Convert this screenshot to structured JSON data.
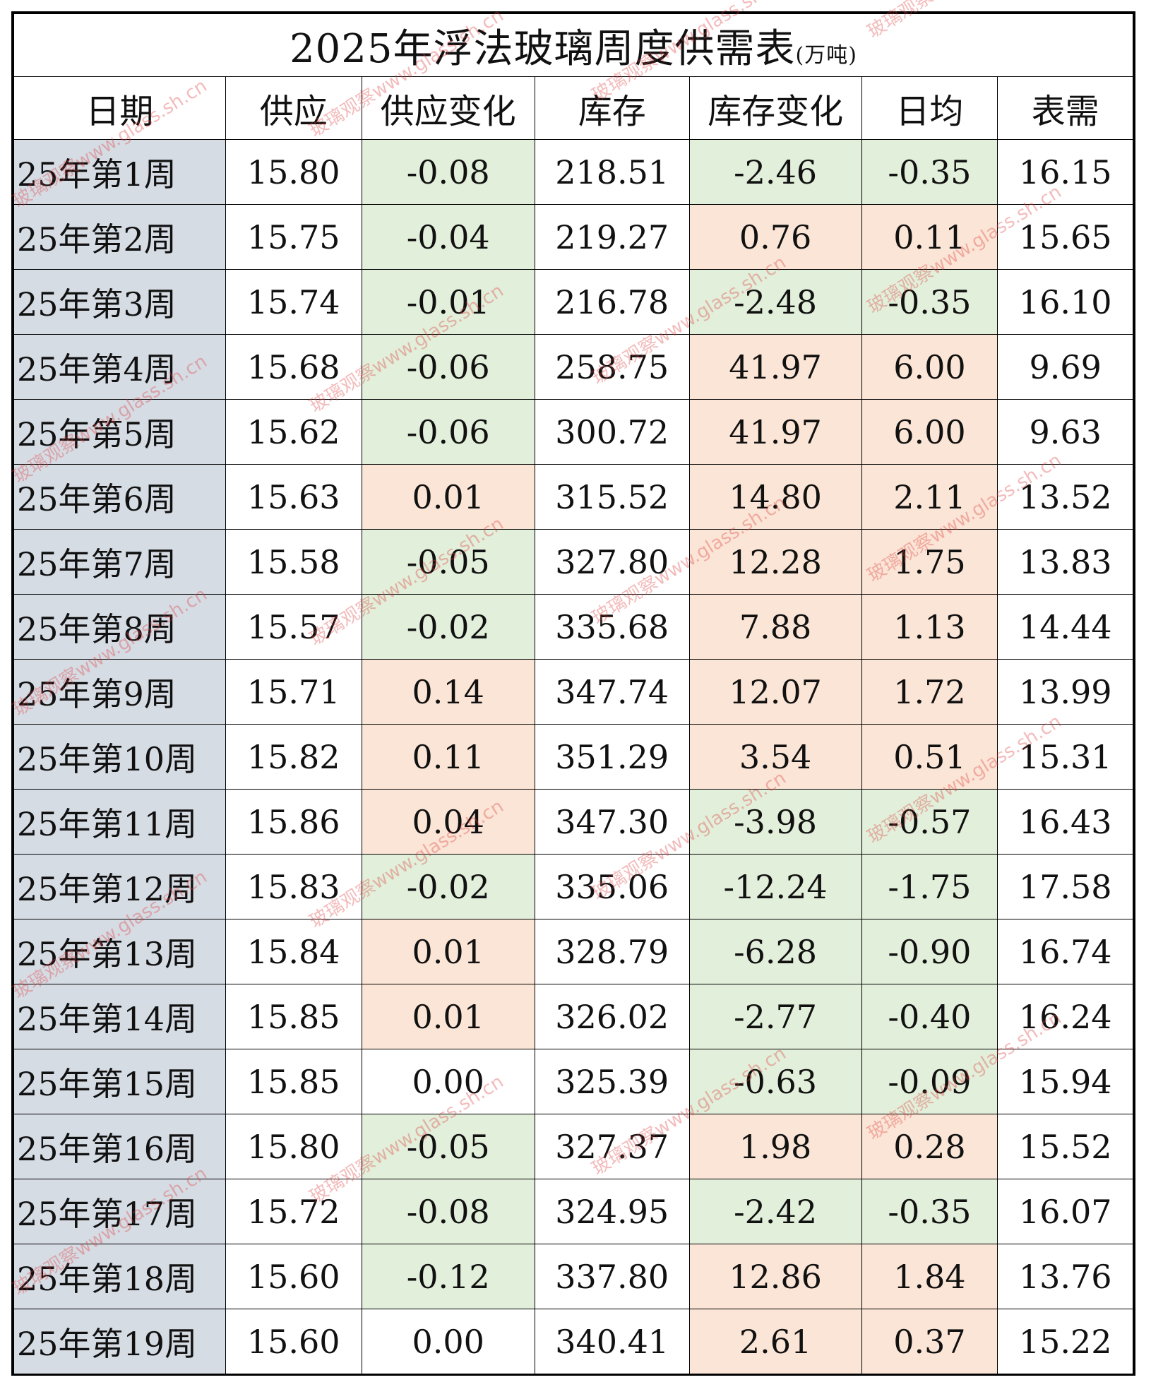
{
  "title": "2025年浮法玻璃周度供需表",
  "unit": "(万吨)",
  "headers": [
    "日期",
    "供应",
    "供应变化",
    "库存",
    "库存变化",
    "日均",
    "表需"
  ],
  "watermark": "玻璃观察www.glass.sh.cn",
  "colors": {
    "positive_bg": "#fbe5d6",
    "negative_bg": "#e2efda",
    "date_bg": "#d6dce4"
  },
  "rows": [
    {
      "date": "25年第1周",
      "supply": "15.80",
      "supply_change": "-0.08",
      "stock": "218.51",
      "stock_change": "-2.46",
      "daily": "-0.35",
      "demand": "16.15"
    },
    {
      "date": "25年第2周",
      "supply": "15.75",
      "supply_change": "-0.04",
      "stock": "219.27",
      "stock_change": "0.76",
      "daily": "0.11",
      "demand": "15.65"
    },
    {
      "date": "25年第3周",
      "supply": "15.74",
      "supply_change": "-0.01",
      "stock": "216.78",
      "stock_change": "-2.48",
      "daily": "-0.35",
      "demand": "16.10"
    },
    {
      "date": "25年第4周",
      "supply": "15.68",
      "supply_change": "-0.06",
      "stock": "258.75",
      "stock_change": "41.97",
      "daily": "6.00",
      "demand": "9.69"
    },
    {
      "date": "25年第5周",
      "supply": "15.62",
      "supply_change": "-0.06",
      "stock": "300.72",
      "stock_change": "41.97",
      "daily": "6.00",
      "demand": "9.63"
    },
    {
      "date": "25年第6周",
      "supply": "15.63",
      "supply_change": "0.01",
      "stock": "315.52",
      "stock_change": "14.80",
      "daily": "2.11",
      "demand": "13.52"
    },
    {
      "date": "25年第7周",
      "supply": "15.58",
      "supply_change": "-0.05",
      "stock": "327.80",
      "stock_change": "12.28",
      "daily": "1.75",
      "demand": "13.83"
    },
    {
      "date": "25年第8周",
      "supply": "15.57",
      "supply_change": "-0.02",
      "stock": "335.68",
      "stock_change": "7.88",
      "daily": "1.13",
      "demand": "14.44"
    },
    {
      "date": "25年第9周",
      "supply": "15.71",
      "supply_change": "0.14",
      "stock": "347.74",
      "stock_change": "12.07",
      "daily": "1.72",
      "demand": "13.99"
    },
    {
      "date": "25年第10周",
      "supply": "15.82",
      "supply_change": "0.11",
      "stock": "351.29",
      "stock_change": "3.54",
      "daily": "0.51",
      "demand": "15.31"
    },
    {
      "date": "25年第11周",
      "supply": "15.86",
      "supply_change": "0.04",
      "stock": "347.30",
      "stock_change": "-3.98",
      "daily": "-0.57",
      "demand": "16.43"
    },
    {
      "date": "25年第12周",
      "supply": "15.83",
      "supply_change": "-0.02",
      "stock": "335.06",
      "stock_change": "-12.24",
      "daily": "-1.75",
      "demand": "17.58"
    },
    {
      "date": "25年第13周",
      "supply": "15.84",
      "supply_change": "0.01",
      "stock": "328.79",
      "stock_change": "-6.28",
      "daily": "-0.90",
      "demand": "16.74"
    },
    {
      "date": "25年第14周",
      "supply": "15.85",
      "supply_change": "0.01",
      "stock": "326.02",
      "stock_change": "-2.77",
      "daily": "-0.40",
      "demand": "16.24"
    },
    {
      "date": "25年第15周",
      "supply": "15.85",
      "supply_change": "0.00",
      "stock": "325.39",
      "stock_change": "-0.63",
      "daily": "-0.09",
      "demand": "15.94"
    },
    {
      "date": "25年第16周",
      "supply": "15.80",
      "supply_change": "-0.05",
      "stock": "327.37",
      "stock_change": "1.98",
      "daily": "0.28",
      "demand": "15.52"
    },
    {
      "date": "25年第17周",
      "supply": "15.72",
      "supply_change": "-0.08",
      "stock": "324.95",
      "stock_change": "-2.42",
      "daily": "-0.35",
      "demand": "16.07"
    },
    {
      "date": "25年第18周",
      "supply": "15.60",
      "supply_change": "-0.12",
      "stock": "337.80",
      "stock_change": "12.86",
      "daily": "1.84",
      "demand": "13.76"
    },
    {
      "date": "25年第19周",
      "supply": "15.60",
      "supply_change": "0.00",
      "stock": "340.41",
      "stock_change": "2.61",
      "daily": "0.37",
      "demand": "15.22"
    }
  ]
}
